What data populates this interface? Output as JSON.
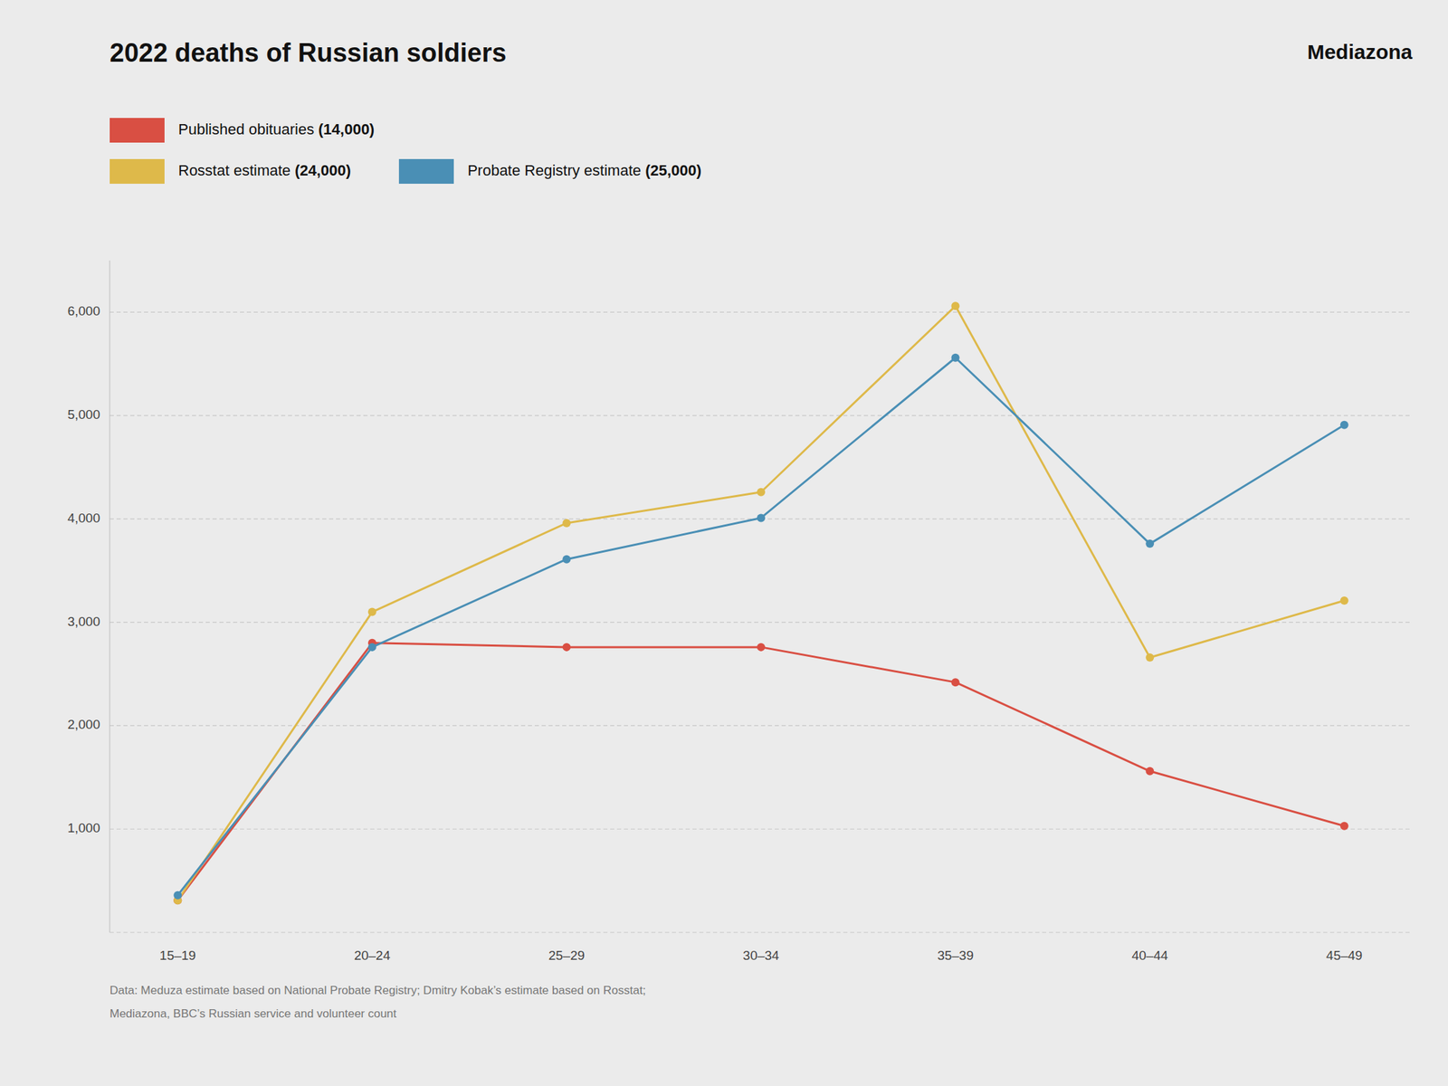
{
  "chart_data": {
    "type": "line",
    "title": "2022 deaths of Russian soldiers",
    "annotations": [
      "Mediazona",
      "Data: Meduza estimate based on National Probate Registry; Dmitry Kobak’s estimate based on Rosstat;",
      "Mediazona, BBC’s Russian service and volunteer count"
    ],
    "categories": [
      "15–19",
      "20–24",
      "25–29",
      "30–34",
      "35–39",
      "40–44",
      "45–49"
    ],
    "series": [
      {
        "name": "Published obituaries (14,000)",
        "color": "#d94f43",
        "values": [
          310,
          2800,
          2760,
          2760,
          2420,
          1560,
          1030
        ]
      },
      {
        "name": "Rosstat estimate (24,000)",
        "color": "#deb94a",
        "values": [
          310,
          3100,
          3960,
          4260,
          6060,
          2660,
          3210
        ]
      },
      {
        "name": "Probate Registry estimate (25,000)",
        "color": "#4a8fb5",
        "values": [
          360,
          2760,
          3610,
          4010,
          5560,
          3760,
          4910
        ]
      }
    ],
    "ylim": [
      0,
      6500
    ],
    "yticks": [
      {
        "value": 0,
        "label": null
      },
      {
        "value": 1000,
        "label": "1,000"
      },
      {
        "value": 2000,
        "label": "2,000"
      },
      {
        "value": 3000,
        "label": "3,000"
      },
      {
        "value": 4000,
        "label": "4,000"
      },
      {
        "value": 5000,
        "label": "5,000"
      },
      {
        "value": 6000,
        "label": "6,000"
      }
    ],
    "grid": true,
    "marker": "circle",
    "line_style": "solid"
  }
}
